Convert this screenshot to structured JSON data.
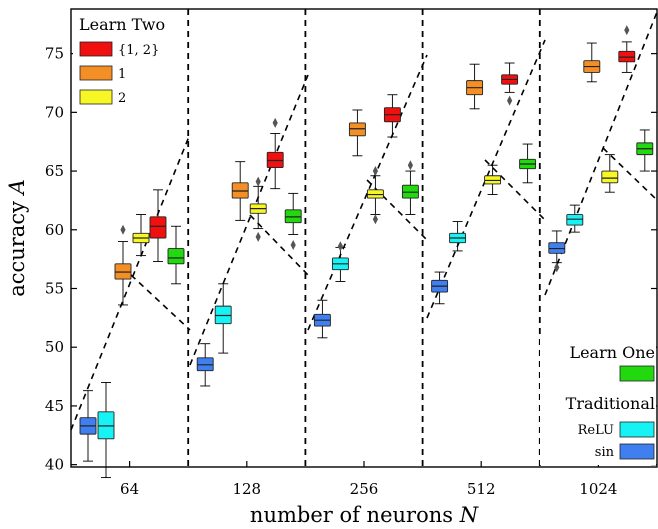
{
  "chart_data": {
    "type": "box",
    "xlabel": "number of neurons N",
    "ylabel": "accuracy A",
    "ylim": [
      39.8,
      78.8
    ],
    "yticks": [
      40,
      45,
      50,
      55,
      60,
      65,
      70,
      75
    ],
    "categories": [
      "64",
      "128",
      "256",
      "512",
      "1024"
    ],
    "grid": false,
    "legend": {
      "placement": "top-left and bottom-right",
      "learn_two_title": "Learn Two",
      "learn_one_title": "Learn One",
      "traditional_title": "Traditional"
    },
    "series": [
      {
        "name": "sin",
        "group": "Traditional",
        "color": "#3f7fef",
        "boxes": [
          {
            "min": 40.3,
            "q1": 42.6,
            "median": 43.3,
            "q3": 44.0,
            "max": 46.3,
            "outliers": []
          },
          {
            "min": 46.7,
            "q1": 48.0,
            "median": 48.5,
            "q3": 49.1,
            "max": 50.3,
            "outliers": []
          },
          {
            "min": 50.8,
            "q1": 51.8,
            "median": 52.3,
            "q3": 52.8,
            "max": 54.0,
            "outliers": []
          },
          {
            "min": 53.7,
            "q1": 54.7,
            "median": 55.2,
            "q3": 55.7,
            "max": 56.4,
            "outliers": []
          },
          {
            "min": 57.2,
            "q1": 58.0,
            "median": 58.4,
            "q3": 58.9,
            "max": 59.9,
            "outliers": [
              56.8
            ]
          }
        ]
      },
      {
        "name": "ReLU",
        "group": "Traditional",
        "color": "#17f2f5",
        "boxes": [
          {
            "min": 38.9,
            "q1": 42.2,
            "median": 43.3,
            "q3": 44.5,
            "max": 47.0,
            "outliers": []
          },
          {
            "min": 49.5,
            "q1": 52.0,
            "median": 52.7,
            "q3": 53.5,
            "max": 55.4,
            "outliers": []
          },
          {
            "min": 55.6,
            "q1": 56.6,
            "median": 57.1,
            "q3": 57.6,
            "max": 58.5,
            "outliers": [
              58.6
            ]
          },
          {
            "min": 58.2,
            "q1": 58.9,
            "median": 59.3,
            "q3": 59.7,
            "max": 60.7,
            "outliers": []
          },
          {
            "min": 59.8,
            "q1": 60.4,
            "median": 60.9,
            "q3": 61.3,
            "max": 62.1,
            "outliers": []
          }
        ]
      },
      {
        "name": "Learn One",
        "group": "Learn One",
        "color": "#22d80e",
        "boxes": [
          {
            "min": 55.4,
            "q1": 57.1,
            "median": 57.6,
            "q3": 58.4,
            "max": 60.3,
            "outliers": []
          },
          {
            "min": 59.6,
            "q1": 60.6,
            "median": 61.1,
            "q3": 61.7,
            "max": 63.1,
            "outliers": [
              58.7
            ]
          },
          {
            "min": 61.3,
            "q1": 62.7,
            "median": 63.2,
            "q3": 63.8,
            "max": 65.0,
            "outliers": [
              65.5
            ]
          },
          {
            "min": 64.0,
            "q1": 65.2,
            "median": 65.6,
            "q3": 66.0,
            "max": 67.3,
            "outliers": []
          },
          {
            "min": 65.0,
            "q1": 66.4,
            "median": 66.9,
            "q3": 67.4,
            "max": 68.5,
            "outliers": []
          }
        ]
      },
      {
        "name": "1",
        "group": "Learn Two",
        "color": "#f48f26",
        "boxes": [
          {
            "min": 53.6,
            "q1": 55.8,
            "median": 56.4,
            "q3": 57.1,
            "max": 59.0,
            "outliers": [
              60.0
            ]
          },
          {
            "min": 60.8,
            "q1": 62.7,
            "median": 63.3,
            "q3": 64.0,
            "max": 65.8,
            "outliers": []
          },
          {
            "min": 66.3,
            "q1": 68.0,
            "median": 68.6,
            "q3": 69.1,
            "max": 70.2,
            "outliers": []
          },
          {
            "min": 70.3,
            "q1": 71.5,
            "median": 72.1,
            "q3": 72.7,
            "max": 74.1,
            "outliers": []
          },
          {
            "min": 72.6,
            "q1": 73.4,
            "median": 73.9,
            "q3": 74.4,
            "max": 75.9,
            "outliers": []
          }
        ]
      },
      {
        "name": "2",
        "group": "Learn Two",
        "color": "#f7f725",
        "boxes": [
          {
            "min": 57.8,
            "q1": 58.9,
            "median": 59.3,
            "q3": 59.7,
            "max": 61.3,
            "outliers": []
          },
          {
            "min": 60.1,
            "q1": 61.4,
            "median": 61.8,
            "q3": 62.2,
            "max": 63.7,
            "outliers": [
              59.4,
              64.1
            ]
          },
          {
            "min": 61.3,
            "q1": 62.7,
            "median": 63.0,
            "q3": 63.4,
            "max": 64.6,
            "outliers": [
              60.9,
              65.0
            ]
          },
          {
            "min": 63.0,
            "q1": 63.9,
            "median": 64.2,
            "q3": 64.6,
            "max": 65.5,
            "outliers": []
          },
          {
            "min": 63.2,
            "q1": 64.0,
            "median": 64.4,
            "q3": 65.0,
            "max": 66.4,
            "outliers": []
          }
        ]
      },
      {
        "name": "{1, 2}",
        "group": "Learn Two",
        "color": "#f01010",
        "boxes": [
          {
            "min": 57.3,
            "q1": 59.3,
            "median": 60.3,
            "q3": 61.1,
            "max": 63.4,
            "outliers": []
          },
          {
            "min": 63.5,
            "q1": 65.3,
            "median": 65.9,
            "q3": 66.6,
            "max": 68.2,
            "outliers": [
              69.1
            ]
          },
          {
            "min": 67.9,
            "q1": 69.2,
            "median": 69.8,
            "q3": 70.4,
            "max": 71.5,
            "outliers": []
          },
          {
            "min": 71.7,
            "q1": 72.4,
            "median": 72.8,
            "q3": 73.2,
            "max": 74.2,
            "outliers": [
              71.0
            ]
          },
          {
            "min": 73.4,
            "q1": 74.3,
            "median": 74.7,
            "q3": 75.2,
            "max": 76.0,
            "outliers": [
              77.0
            ]
          }
        ]
      }
    ]
  }
}
